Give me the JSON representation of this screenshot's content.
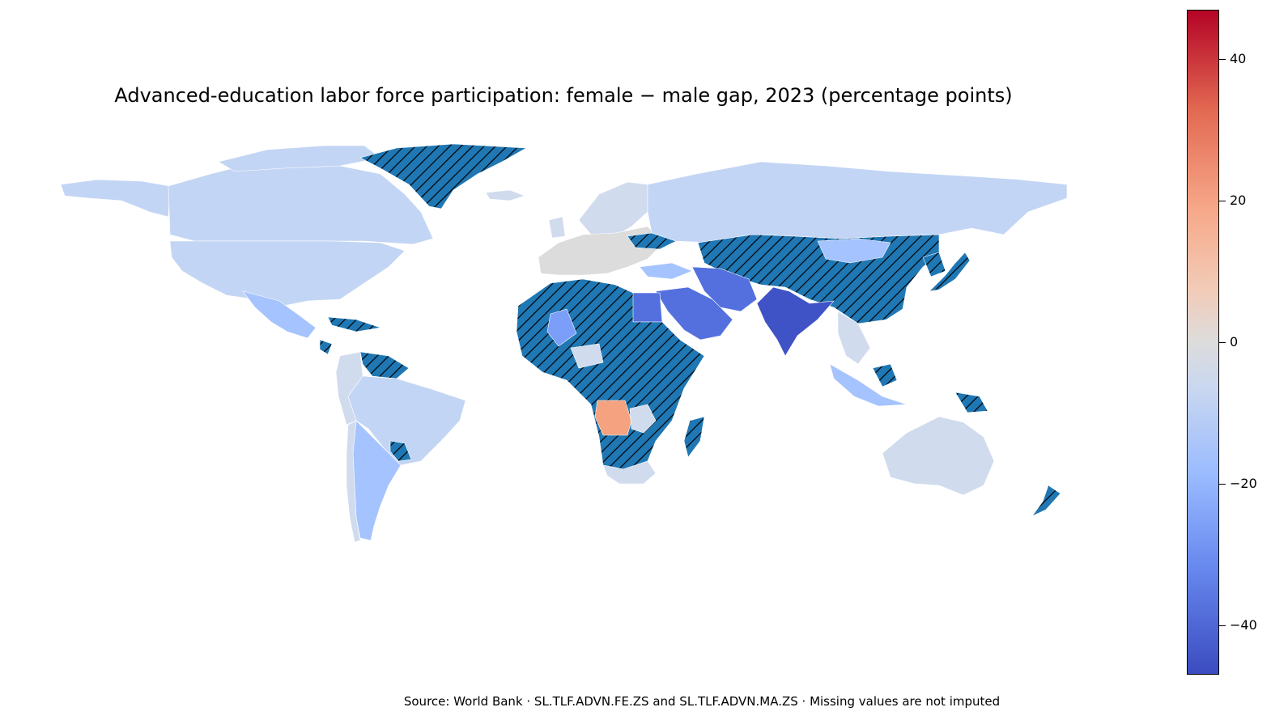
{
  "title": "Advanced-education labor force participation: female − male gap, 2023 (percentage points)",
  "source": "Source: World Bank · SL.TLF.ADVN.FE.ZS and SL.TLF.ADVN.MA.ZS · Missing values are not imputed",
  "colorbar": {
    "range": [
      -47,
      47
    ],
    "ticks": [
      "40",
      "20",
      "0",
      "−20",
      "−40"
    ],
    "tick_values": [
      40,
      20,
      0,
      -20,
      -40
    ],
    "colormap": "coolwarm"
  },
  "colors": {
    "missing_fill": "#1f77b4",
    "missing_hatch": "#000000",
    "light_blue": "#c3d5f4",
    "pale_blue": "#d0dbee",
    "gray": "#dcdcdc",
    "mid_blue": "#a5c3fe",
    "blue": "#7b9ff9",
    "deep_blue": "#5470de",
    "darkest_blue": "#3f53c6",
    "salmon": "#f4a27f"
  },
  "chart_data": {
    "type": "choropleth",
    "regions": [
      {
        "name": "Greenland",
        "status": "missing"
      },
      {
        "name": "Canada",
        "value": -9
      },
      {
        "name": "United States",
        "value": -9
      },
      {
        "name": "Mexico",
        "value": -15
      },
      {
        "name": "Brazil",
        "value": -10
      },
      {
        "name": "Argentina",
        "value": -12
      },
      {
        "name": "Russia",
        "value": -10
      },
      {
        "name": "Europe",
        "value": -3
      },
      {
        "name": "North Africa",
        "status": "missing"
      },
      {
        "name": "Sub-Saharan Africa",
        "status": "missing"
      },
      {
        "name": "Angola",
        "value": 20
      },
      {
        "name": "South Africa",
        "value": -8
      },
      {
        "name": "Saudi Arabia",
        "value": -37
      },
      {
        "name": "Iran",
        "value": -33
      },
      {
        "name": "India",
        "value": -42
      },
      {
        "name": "China",
        "status": "missing"
      },
      {
        "name": "Mongolia",
        "value": -18
      },
      {
        "name": "Japan",
        "status": "missing"
      },
      {
        "name": "Australia",
        "value": -8
      },
      {
        "name": "New Zealand",
        "status": "missing"
      },
      {
        "name": "Madagascar",
        "status": "missing"
      }
    ]
  }
}
